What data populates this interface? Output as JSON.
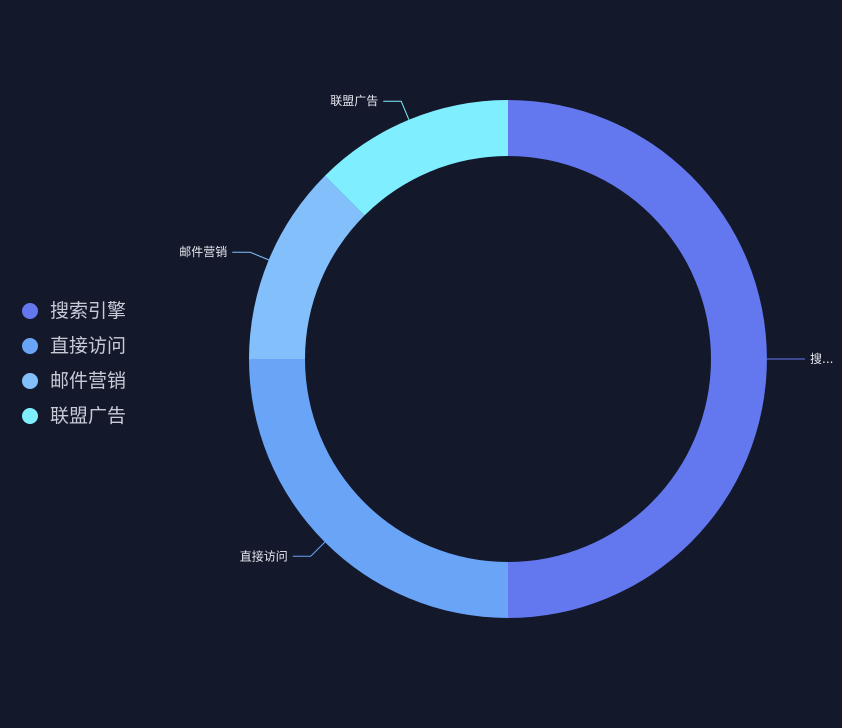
{
  "chart_data": {
    "type": "pie",
    "title": "",
    "categories": [
      "搜索引擎",
      "直接访问",
      "邮件营销",
      "联盟广告"
    ],
    "values": [
      50,
      25,
      12.5,
      12.5
    ],
    "slice_labels": [
      "搜...",
      "直接访问",
      "邮件营销",
      "联盟广告"
    ],
    "colors": [
      "#6378ef",
      "#6aa4f7",
      "#82bffb",
      "#7fefff"
    ],
    "legend_position": "left",
    "donut": true
  }
}
